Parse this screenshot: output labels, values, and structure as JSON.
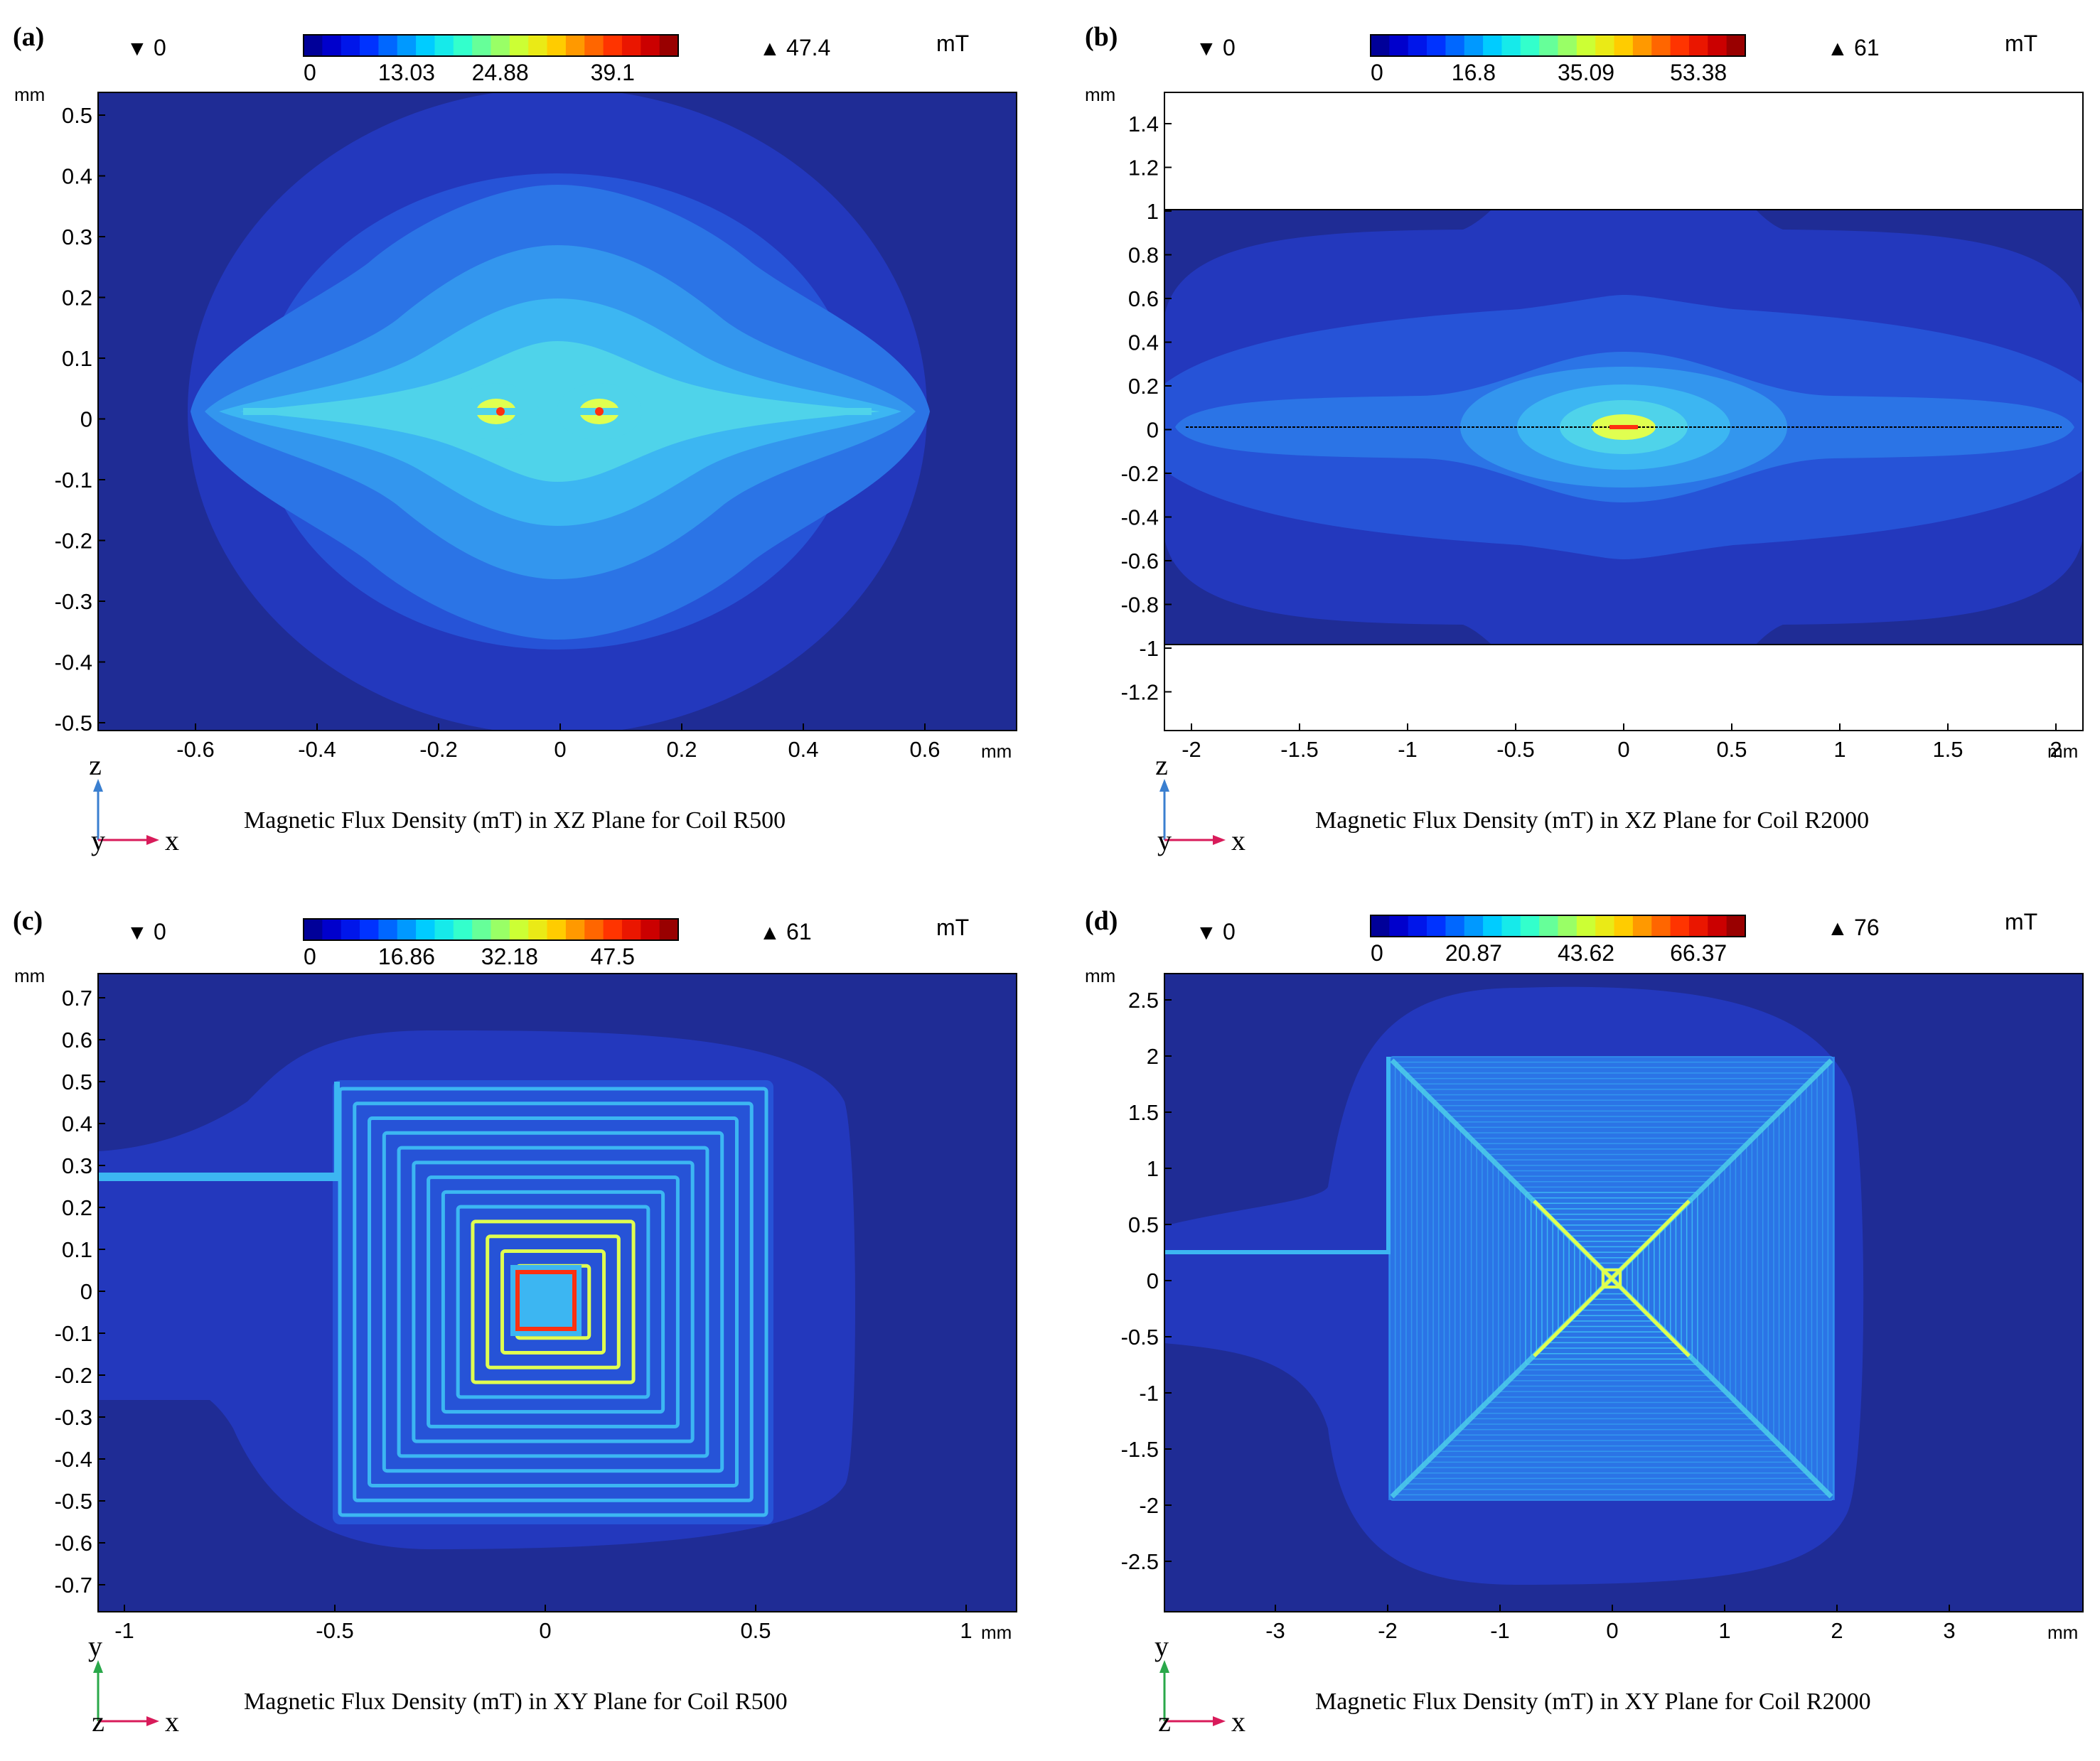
{
  "figure": {
    "colormap": [
      "#00007f",
      "#0000d4",
      "#002bff",
      "#0080ff",
      "#00d4ff",
      "#2bffd4",
      "#80ff80",
      "#d4ff2b",
      "#ffd400",
      "#ff8000",
      "#ff2b00",
      "#d40000",
      "#7f0000"
    ],
    "field_colors": {
      "outer": "#1f2c95",
      "level1": "#2338bd",
      "level2": "#2653d7",
      "level3": "#2b74e6",
      "level4": "#3396ee",
      "level5": "#3cb6f2",
      "level6": "#4fd3ea",
      "hot": "#e0ff50",
      "peak": "#ff3010"
    }
  },
  "chart_data": [
    {
      "type": "heatmap",
      "panel_label": "(a)",
      "title": "Magnetic Flux Density (mT) in XZ Plane for Coil R500",
      "unit": "mT",
      "min_label": "0",
      "max_label": "47.4",
      "colorbar_ticks": [
        "0",
        "13.03",
        "24.88",
        "39.1"
      ],
      "colorbar_range": [
        0,
        47.4
      ],
      "xlabel_unit": "mm",
      "ylabel_unit": "mm",
      "x_ticks": [
        "-0.6",
        "-0.4",
        "-0.2",
        "0",
        "0.2",
        "0.4",
        "0.6"
      ],
      "y_ticks": [
        "0.5",
        "0.4",
        "0.3",
        "0.2",
        "0.1",
        "0",
        "-0.1",
        "-0.2",
        "-0.3",
        "-0.4",
        "-0.5"
      ],
      "xlim": [
        -0.76,
        0.76
      ],
      "ylim": [
        -0.52,
        0.52
      ],
      "axis_vertical": "z",
      "axis_horizontal": "x",
      "axis_depth": "y",
      "coil_extent_mm": [
        -0.5,
        0.5
      ],
      "peak_x_mm": [
        -0.09,
        0.07
      ]
    },
    {
      "type": "heatmap",
      "panel_label": "(b)",
      "title": "Magnetic Flux Density (mT) in XZ Plane for Coil R2000",
      "unit": "mT",
      "min_label": "0",
      "max_label": "61",
      "colorbar_ticks": [
        "0",
        "16.8",
        "35.09",
        "53.38"
      ],
      "colorbar_range": [
        0,
        61
      ],
      "xlabel_unit": "mm",
      "ylabel_unit": "mm",
      "x_ticks": [
        "-2",
        "-1.5",
        "-1",
        "-0.5",
        "0",
        "0.5",
        "1",
        "1.5",
        "2"
      ],
      "y_ticks": [
        "1.4",
        "1.2",
        "1",
        "0.8",
        "0.6",
        "0.4",
        "0.2",
        "0",
        "-0.2",
        "-0.4",
        "-0.6",
        "-0.8",
        "-1",
        "-1.2"
      ],
      "xlim": [
        -2.12,
        2.12
      ],
      "ylim": [
        -1.39,
        1.53
      ],
      "field_zlim": [
        -1,
        1
      ],
      "axis_vertical": "z",
      "axis_horizontal": "x",
      "axis_depth": "y",
      "coil_extent_mm": [
        -2,
        2
      ]
    },
    {
      "type": "heatmap",
      "panel_label": "(c)",
      "title": "Magnetic Flux Density (mT) in XY Plane for Coil R500",
      "unit": "mT",
      "min_label": "0",
      "max_label": "61",
      "colorbar_ticks": [
        "0",
        "16.86",
        "32.18",
        "47.5"
      ],
      "colorbar_range": [
        0,
        61
      ],
      "xlabel_unit": "mm",
      "ylabel_unit": "mm",
      "x_ticks": [
        "-1",
        "-0.5",
        "0",
        "0.5",
        "1"
      ],
      "y_ticks": [
        "0.7",
        "0.6",
        "0.5",
        "0.4",
        "0.3",
        "0.2",
        "0.1",
        "0",
        "-0.1",
        "-0.2",
        "-0.3",
        "-0.4",
        "-0.5",
        "-0.6",
        "-0.7"
      ],
      "xlim": [
        -1.07,
        1.1
      ],
      "ylim": [
        -0.75,
        0.77
      ],
      "axis_vertical": "y",
      "axis_horizontal": "x",
      "axis_depth": "z",
      "coil_extent_mm": [
        -0.5,
        0.5
      ],
      "lead_y_mm": 0.26
    },
    {
      "type": "heatmap",
      "panel_label": "(d)",
      "title": "Magnetic Flux Density (mT) in XY Plane for Coil R2000",
      "unit": "mT",
      "min_label": "0",
      "max_label": "76",
      "colorbar_ticks": [
        "0",
        "20.87",
        "43.62",
        "66.37"
      ],
      "colorbar_range": [
        0,
        76
      ],
      "xlabel_unit": "mm",
      "ylabel_unit": "mm",
      "x_ticks": [
        "-3",
        "-2",
        "-1",
        "0",
        "1",
        "2",
        "3"
      ],
      "y_ticks": [
        "2.5",
        "2",
        "1.5",
        "1",
        "0.5",
        "0",
        "-0.5",
        "-1",
        "-1.5",
        "-2",
        "-2.5"
      ],
      "xlim": [
        -4,
        4.2
      ],
      "ylim": [
        -2.95,
        2.7
      ],
      "axis_vertical": "y",
      "axis_horizontal": "x",
      "axis_depth": "z",
      "coil_extent_mm": [
        -2,
        2
      ],
      "lead_y_mm": 0.26
    }
  ]
}
